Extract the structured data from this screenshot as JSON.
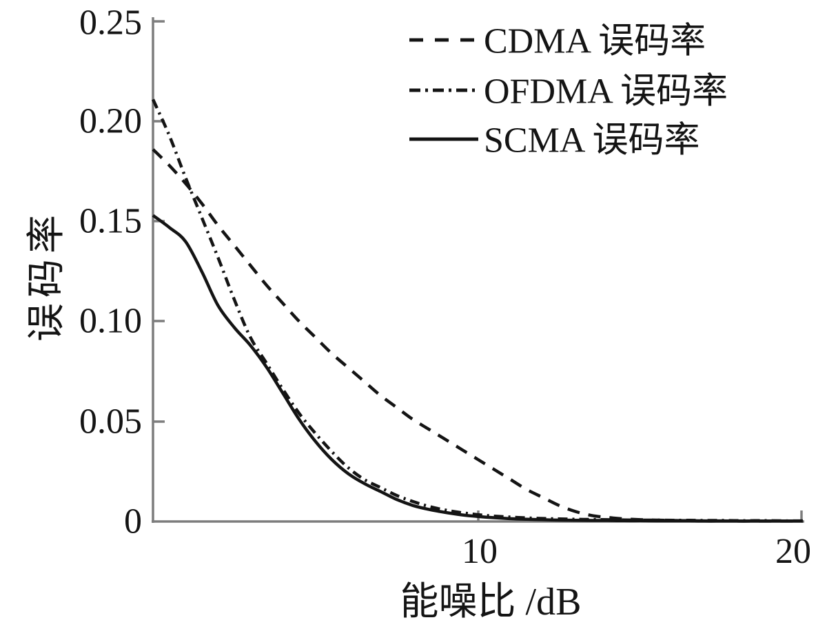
{
  "figure": {
    "background_color": "#ffffff",
    "axis_color": "#7d7d7d",
    "curve_color": "#141414",
    "text_color": "#141414"
  },
  "chart_data": {
    "type": "line",
    "title": "",
    "xlabel": "能噪比 /dB",
    "ylabel": "误码率",
    "xlim": [
      0,
      20
    ],
    "ylim": [
      0,
      0.25
    ],
    "grid": false,
    "legend_position": "top-center-inside",
    "xticks": [
      10,
      20
    ],
    "xtick_labels": [
      "10",
      "20"
    ],
    "yticks": [
      0,
      0.05,
      0.1,
      0.15,
      0.2,
      0.25
    ],
    "ytick_labels": [
      "0",
      "0.05",
      "0.10",
      "0.15",
      "0.20",
      "0.25"
    ],
    "x": [
      0,
      0.5,
      1,
      1.5,
      2,
      2.5,
      3,
      3.5,
      4,
      4.5,
      5,
      5.5,
      6,
      6.5,
      7,
      7.5,
      8,
      8.5,
      9,
      9.5,
      10,
      10.5,
      11,
      11.5,
      12,
      12.5,
      13,
      13.5,
      14,
      14.5,
      15,
      15.5,
      16,
      16.5,
      17,
      17.5,
      18,
      18.5,
      19,
      19.5,
      20
    ],
    "series": [
      {
        "name": "CDMA 误码率",
        "line_style": "dashed",
        "values": [
          0.186,
          0.178,
          0.169,
          0.159,
          0.148,
          0.138,
          0.128,
          0.118,
          0.109,
          0.1,
          0.092,
          0.084,
          0.077,
          0.07,
          0.063,
          0.057,
          0.051,
          0.046,
          0.041,
          0.036,
          0.031,
          0.026,
          0.021,
          0.016,
          0.012,
          0.008,
          0.005,
          0.003,
          0.002,
          0.0013,
          0.0009,
          0.0007,
          0.0005,
          0.0004,
          0.0003,
          0.0003,
          0.0002,
          0.0002,
          0.0002,
          0.0002,
          0.0002
        ]
      },
      {
        "name": "OFDMA 误码率",
        "line_style": "dashdot",
        "values": [
          0.211,
          0.193,
          0.172,
          0.152,
          0.132,
          0.111,
          0.092,
          0.079,
          0.066,
          0.054,
          0.044,
          0.035,
          0.027,
          0.021,
          0.017,
          0.013,
          0.01,
          0.0075,
          0.0057,
          0.0044,
          0.0034,
          0.0027,
          0.0022,
          0.0018,
          0.0015,
          0.0013,
          0.0011,
          0.001,
          0.0009,
          0.0008,
          0.0007,
          0.0007,
          0.0006,
          0.0006,
          0.0005,
          0.0005,
          0.0004,
          0.0004,
          0.0004,
          0.0003,
          0.0003
        ]
      },
      {
        "name": "SCMA 误码率",
        "line_style": "solid",
        "values": [
          0.153,
          0.147,
          0.14,
          0.125,
          0.108,
          0.097,
          0.088,
          0.077,
          0.064,
          0.051,
          0.04,
          0.031,
          0.024,
          0.019,
          0.015,
          0.011,
          0.008,
          0.006,
          0.0045,
          0.0033,
          0.0025,
          0.0019,
          0.0014,
          0.0011,
          0.0009,
          0.0007,
          0.0006,
          0.0005,
          0.0005,
          0.0004,
          0.0004,
          0.0003,
          0.0003,
          0.0003,
          0.0002,
          0.0002,
          0.0002,
          0.0002,
          0.0002,
          0.0002,
          0.0002
        ]
      }
    ]
  }
}
